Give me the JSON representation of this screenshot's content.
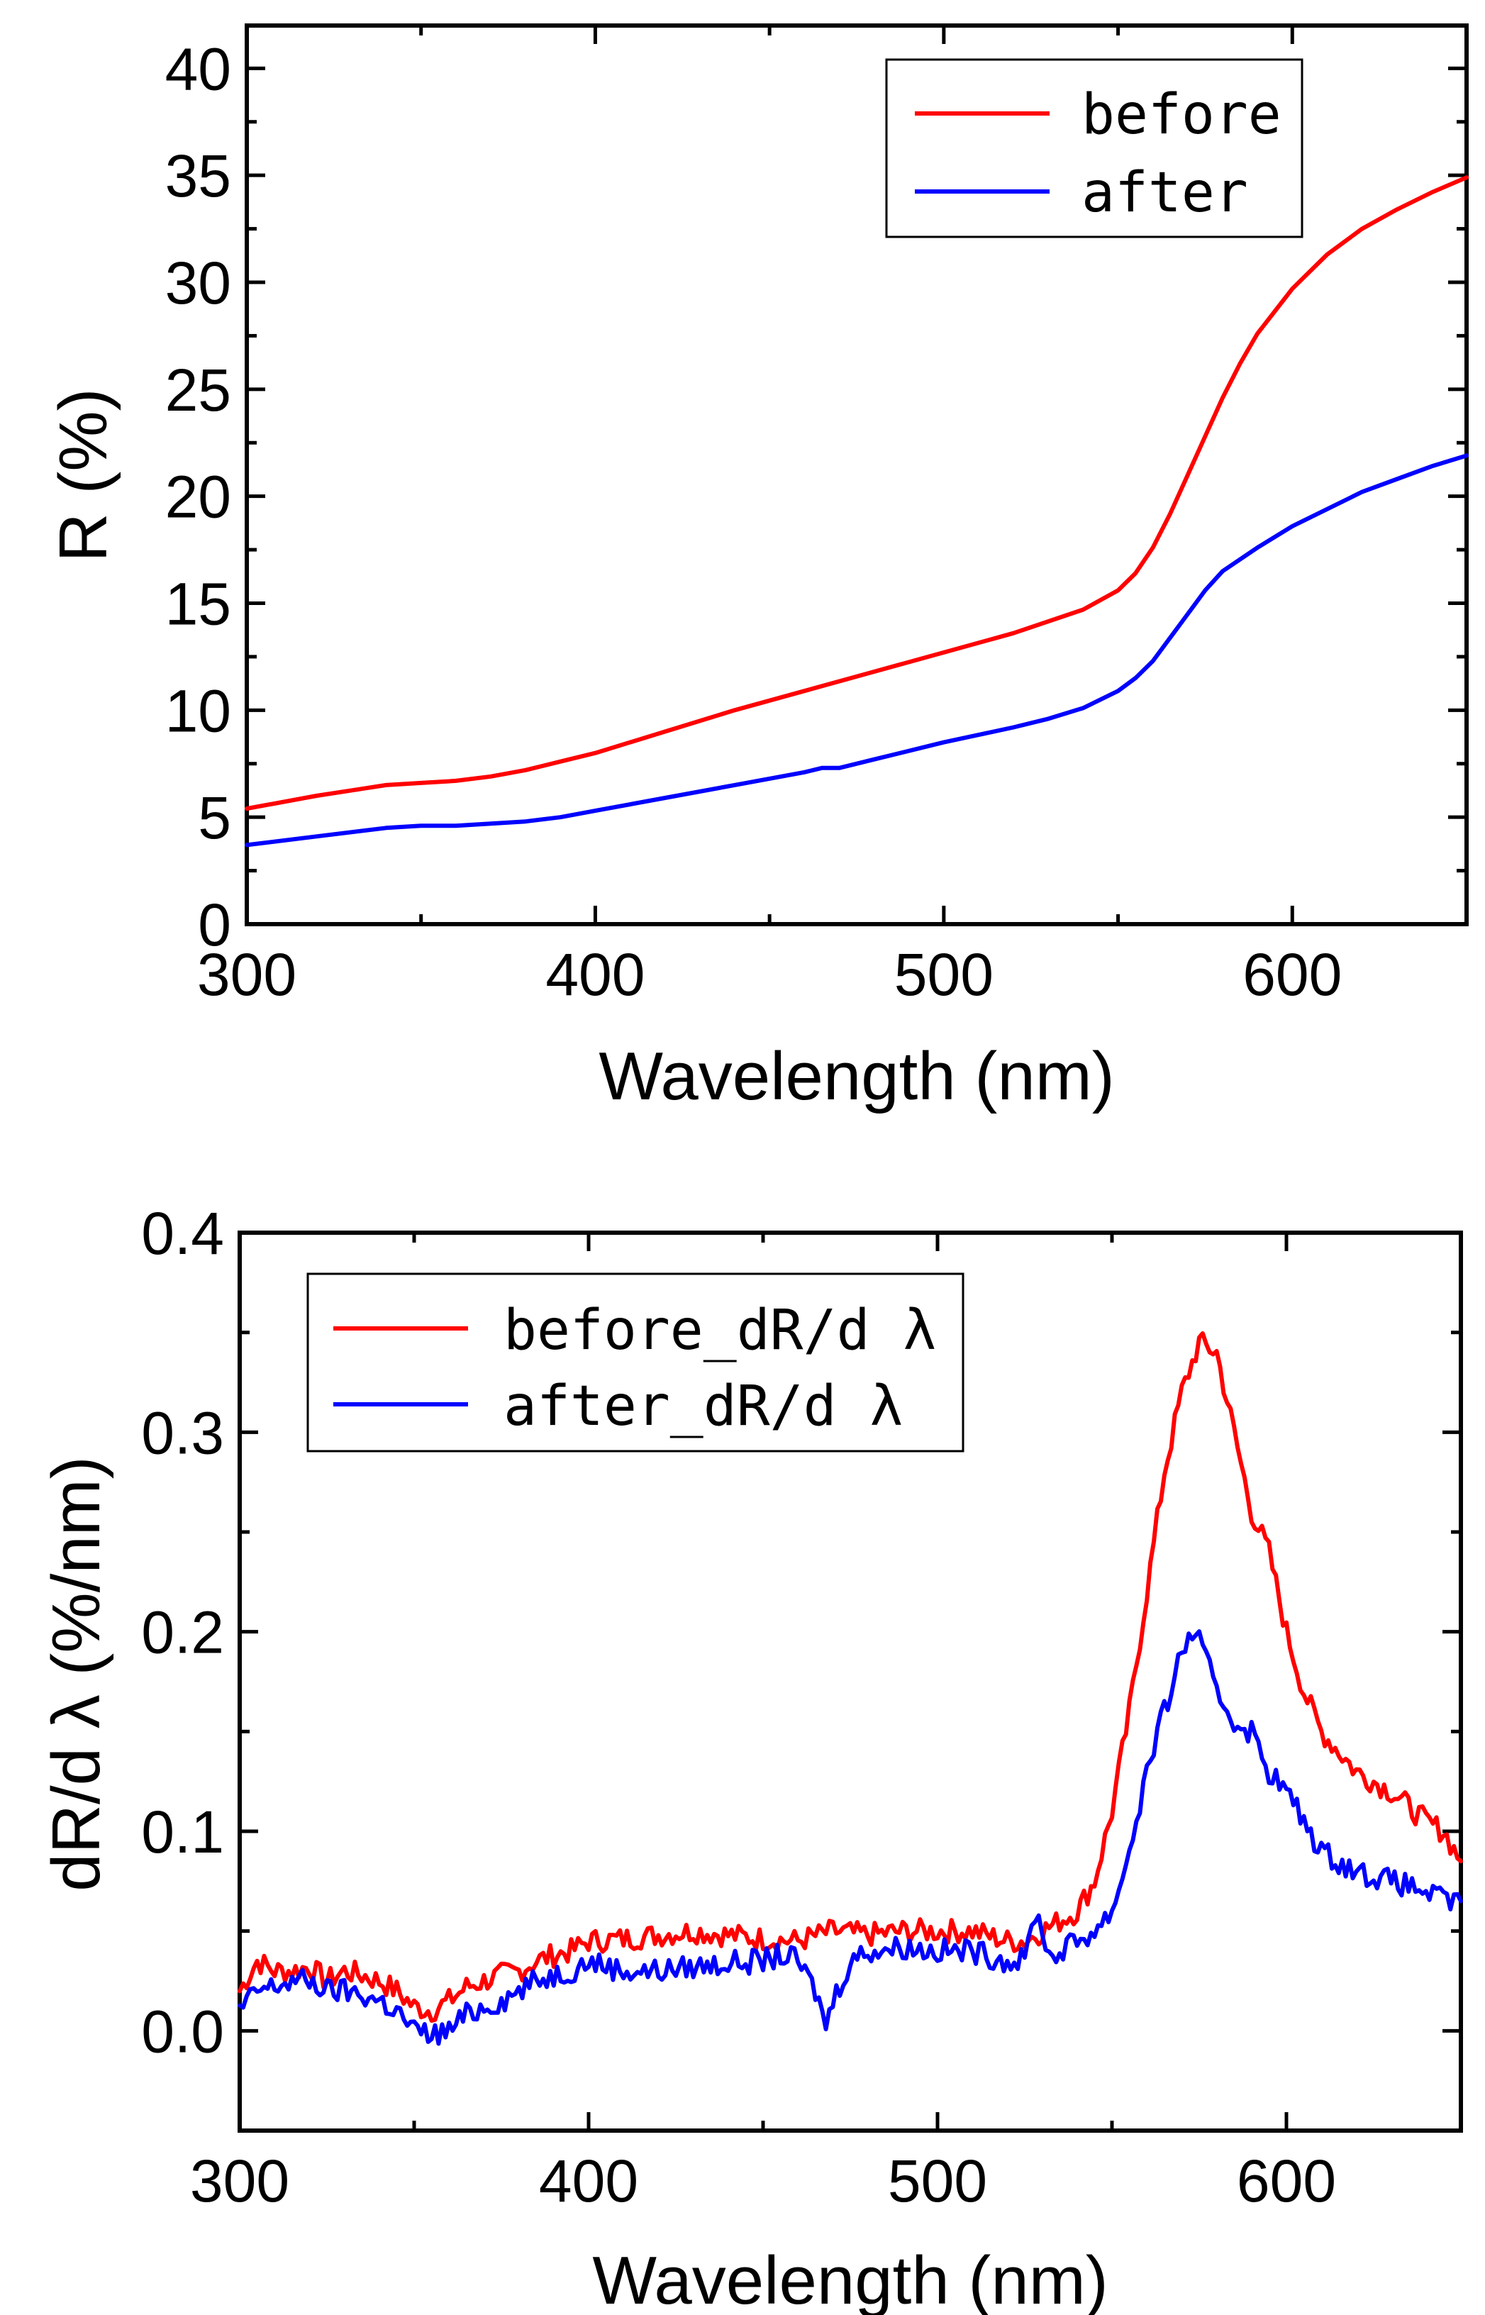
{
  "colors": {
    "before": "#ff0000",
    "after": "#0000ff",
    "axis": "#000000"
  },
  "chart_data": [
    {
      "type": "line",
      "title": "",
      "xlabel": "Wavelength (nm)",
      "ylabel": "R (%)",
      "xlim": [
        300,
        650
      ],
      "ylim": [
        0,
        42
      ],
      "xticks": [
        300,
        400,
        500,
        600
      ],
      "yticks": [
        0,
        5,
        10,
        15,
        20,
        25,
        30,
        35,
        40
      ],
      "x_tick_labels": [
        "300",
        "400",
        "500",
        "600"
      ],
      "y_tick_labels": [
        "0",
        "5",
        "10",
        "15",
        "20",
        "25",
        "30",
        "35",
        "40"
      ],
      "legend_position": "top-right",
      "series": [
        {
          "name": "before",
          "color": "#ff0000",
          "x": [
            300,
            320,
            340,
            350,
            360,
            370,
            380,
            390,
            400,
            420,
            440,
            460,
            480,
            500,
            520,
            540,
            550,
            555,
            560,
            565,
            570,
            575,
            580,
            585,
            590,
            600,
            610,
            620,
            630,
            640,
            650
          ],
          "y": [
            5.4,
            6.0,
            6.5,
            6.6,
            6.7,
            6.9,
            7.2,
            7.6,
            8.0,
            9.0,
            10.0,
            10.9,
            11.8,
            12.7,
            13.6,
            14.7,
            15.6,
            16.4,
            17.6,
            19.2,
            21.0,
            22.8,
            24.6,
            26.2,
            27.6,
            29.7,
            31.3,
            32.5,
            33.4,
            34.2,
            34.9
          ]
        },
        {
          "name": "after",
          "color": "#0000ff",
          "x": [
            300,
            320,
            340,
            350,
            360,
            370,
            380,
            390,
            400,
            420,
            440,
            460,
            465,
            470,
            480,
            500,
            520,
            530,
            540,
            550,
            555,
            560,
            565,
            570,
            575,
            580,
            590,
            600,
            610,
            620,
            630,
            640,
            650
          ],
          "y": [
            3.7,
            4.1,
            4.5,
            4.6,
            4.6,
            4.7,
            4.8,
            5.0,
            5.3,
            5.9,
            6.5,
            7.1,
            7.3,
            7.3,
            7.7,
            8.5,
            9.2,
            9.6,
            10.1,
            10.9,
            11.5,
            12.3,
            13.4,
            14.5,
            15.6,
            16.5,
            17.6,
            18.6,
            19.4,
            20.2,
            20.8,
            21.4,
            21.9
          ]
        }
      ]
    },
    {
      "type": "line",
      "title": "",
      "xlabel": "Wavelength (nm)",
      "ylabel": "dR/d λ (%/nm)",
      "xlim": [
        300,
        650
      ],
      "ylim": [
        -0.05,
        0.4
      ],
      "xticks": [
        300,
        400,
        500,
        600
      ],
      "yticks": [
        0.0,
        0.1,
        0.2,
        0.3,
        0.4
      ],
      "x_tick_labels": [
        "300",
        "400",
        "500",
        "600"
      ],
      "y_tick_labels": [
        "0.0",
        "0.1",
        "0.2",
        "0.3",
        "0.4"
      ],
      "legend_position": "top-left",
      "series": [
        {
          "name": "before_dR/d λ",
          "color": "#ff0000",
          "x": [
            300,
            305,
            310,
            315,
            320,
            325,
            330,
            335,
            340,
            345,
            350,
            355,
            360,
            365,
            370,
            375,
            380,
            385,
            390,
            395,
            400,
            410,
            420,
            430,
            440,
            450,
            460,
            470,
            480,
            490,
            500,
            510,
            520,
            525,
            530,
            535,
            540,
            545,
            550,
            555,
            560,
            565,
            570,
            575,
            580,
            585,
            590,
            595,
            600,
            605,
            610,
            620,
            630,
            640,
            645,
            650
          ],
          "y": [
            0.02,
            0.035,
            0.03,
            0.03,
            0.032,
            0.025,
            0.03,
            0.028,
            0.025,
            0.02,
            0.012,
            0.01,
            0.015,
            0.022,
            0.025,
            0.028,
            0.03,
            0.035,
            0.038,
            0.04,
            0.045,
            0.046,
            0.048,
            0.05,
            0.048,
            0.046,
            0.045,
            0.05,
            0.048,
            0.05,
            0.05,
            0.05,
            0.045,
            0.045,
            0.05,
            0.055,
            0.06,
            0.075,
            0.11,
            0.16,
            0.22,
            0.28,
            0.32,
            0.345,
            0.34,
            0.3,
            0.26,
            0.24,
            0.2,
            0.17,
            0.15,
            0.13,
            0.12,
            0.105,
            0.1,
            0.085
          ]
        },
        {
          "name": "after_dR/d λ",
          "color": "#0000ff",
          "x": [
            300,
            305,
            310,
            315,
            320,
            325,
            330,
            335,
            340,
            345,
            350,
            355,
            360,
            365,
            370,
            375,
            380,
            385,
            390,
            395,
            400,
            410,
            420,
            430,
            440,
            450,
            455,
            460,
            465,
            468,
            470,
            475,
            480,
            490,
            500,
            510,
            520,
            525,
            528,
            530,
            533,
            535,
            540,
            545,
            550,
            555,
            560,
            565,
            570,
            573,
            575,
            580,
            585,
            590,
            595,
            600,
            605,
            610,
            620,
            630,
            640,
            645,
            650
          ],
          "y": [
            0.01,
            0.02,
            0.022,
            0.025,
            0.025,
            0.02,
            0.02,
            0.018,
            0.015,
            0.01,
            0.0,
            -0.002,
            0.0,
            0.008,
            0.012,
            0.015,
            0.02,
            0.025,
            0.028,
            0.03,
            0.035,
            0.03,
            0.03,
            0.032,
            0.034,
            0.035,
            0.038,
            0.035,
            0.02,
            0.003,
            0.015,
            0.035,
            0.04,
            0.042,
            0.04,
            0.04,
            0.035,
            0.035,
            0.06,
            0.05,
            0.035,
            0.04,
            0.045,
            0.05,
            0.06,
            0.09,
            0.13,
            0.16,
            0.19,
            0.2,
            0.195,
            0.17,
            0.155,
            0.15,
            0.13,
            0.12,
            0.105,
            0.09,
            0.08,
            0.075,
            0.07,
            0.065,
            0.065
          ]
        }
      ]
    }
  ]
}
